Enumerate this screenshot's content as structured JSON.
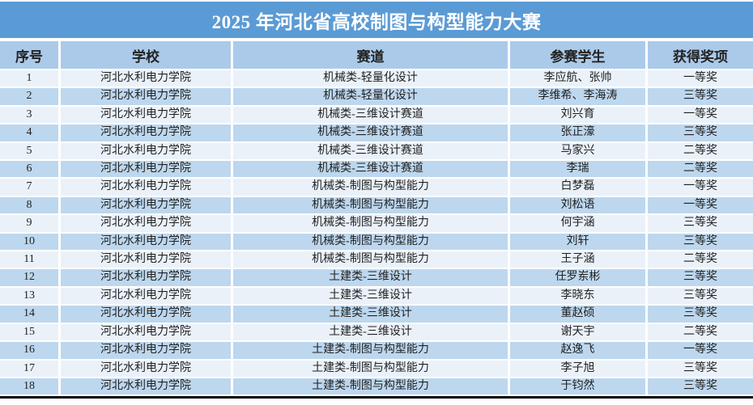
{
  "title": "2025 年河北省高校制图与构型能力大赛",
  "colors": {
    "title_bg": "#5B9BD5",
    "title_fg": "#FFFFFF",
    "header_bg": "#ABCAE9",
    "row_odd": "#EAF1F9",
    "row_even": "#BDD7EE",
    "body_fg": "#222222",
    "bottom_border": "#000000"
  },
  "table": {
    "headers": [
      "序号",
      "学校",
      "赛道",
      "参赛学生",
      "获得奖项"
    ],
    "column_keys": [
      "index",
      "school",
      "track",
      "students",
      "award"
    ],
    "rows": [
      [
        "1",
        "河北水利电力学院",
        "机械类-轻量化设计",
        "李应航、张帅",
        "一等奖"
      ],
      [
        "2",
        "河北水利电力学院",
        "机械类-轻量化设计",
        "李维希、李海涛",
        "三等奖"
      ],
      [
        "3",
        "河北水利电力学院",
        "机械类-三维设计赛道",
        "刘兴育",
        "一等奖"
      ],
      [
        "4",
        "河北水利电力学院",
        "机械类-三维设计赛道",
        "张正濠",
        "三等奖"
      ],
      [
        "5",
        "河北水利电力学院",
        "机械类-三维设计赛道",
        "马家兴",
        "二等奖"
      ],
      [
        "6",
        "河北水利电力学院",
        "机械类-三维设计赛道",
        "李瑞",
        "二等奖"
      ],
      [
        "7",
        "河北水利电力学院",
        "机械类-制图与构型能力",
        "白梦磊",
        "一等奖"
      ],
      [
        "8",
        "河北水利电力学院",
        "机械类-制图与构型能力",
        "刘松语",
        "一等奖"
      ],
      [
        "9",
        "河北水利电力学院",
        "机械类-制图与构型能力",
        "何宇涵",
        "三等奖"
      ],
      [
        "10",
        "河北水利电力学院",
        "机械类-制图与构型能力",
        "刘轩",
        "三等奖"
      ],
      [
        "11",
        "河北水利电力学院",
        "机械类-制图与构型能力",
        "王子涵",
        "二等奖"
      ],
      [
        "12",
        "河北水利电力学院",
        "土建类-三维设计",
        "任罗岽彬",
        "三等奖"
      ],
      [
        "13",
        "河北水利电力学院",
        "土建类-三维设计",
        "李晓东",
        "三等奖"
      ],
      [
        "14",
        "河北水利电力学院",
        "土建类-三维设计",
        "董赵硕",
        "三等奖"
      ],
      [
        "15",
        "河北水利电力学院",
        "土建类-三维设计",
        "谢天宇",
        "二等奖"
      ],
      [
        "16",
        "河北水利电力学院",
        "土建类-制图与构型能力",
        "赵逸飞",
        "一等奖"
      ],
      [
        "17",
        "河北水利电力学院",
        "土建类-制图与构型能力",
        "李子旭",
        "三等奖"
      ],
      [
        "18",
        "河北水利电力学院",
        "土建类-制图与构型能力",
        "于钧然",
        "三等奖"
      ]
    ]
  }
}
